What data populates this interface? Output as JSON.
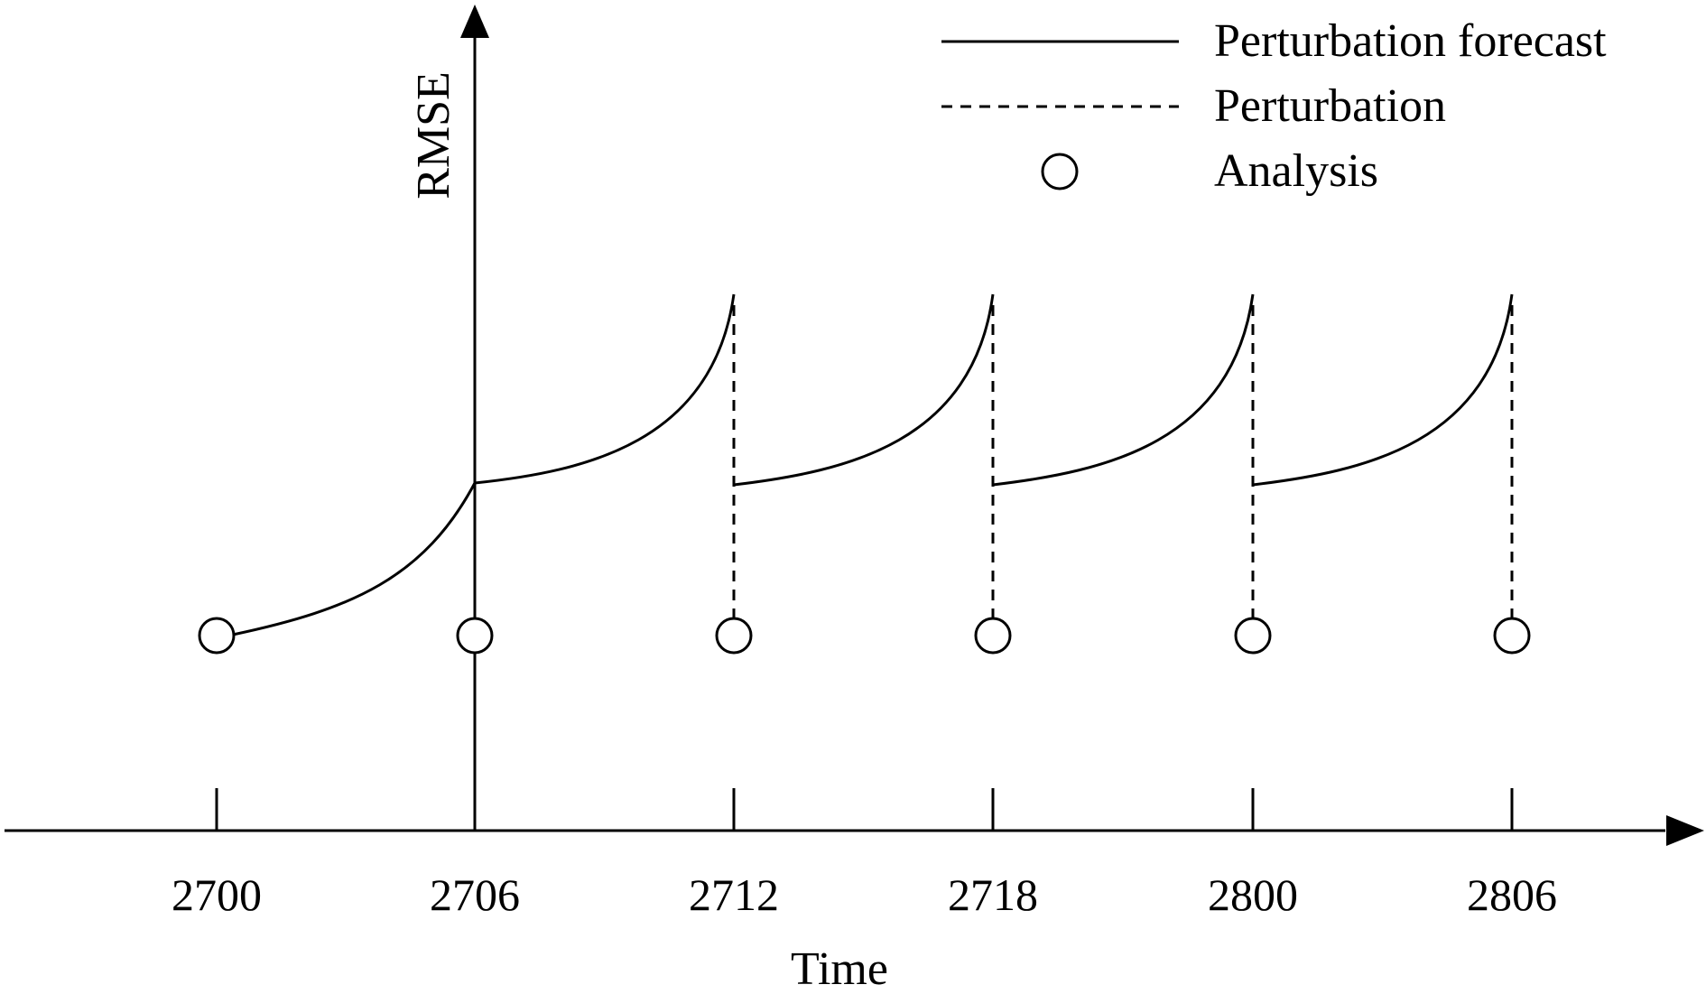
{
  "diagram": {
    "y_axis_title": "RMSE",
    "x_axis_title": "Time",
    "ticks": [
      "2700",
      "2706",
      "2712",
      "2718",
      "2800",
      "2806"
    ],
    "legend": [
      {
        "key": "forecast",
        "label": "Perturbation forecast",
        "style": "solid-line"
      },
      {
        "key": "perturbation",
        "label": "Perturbation",
        "style": "dashed-line"
      },
      {
        "key": "analysis",
        "label": "Analysis",
        "style": "circle"
      }
    ],
    "colors": {
      "ink": "#000000",
      "background": "#ffffff"
    }
  }
}
